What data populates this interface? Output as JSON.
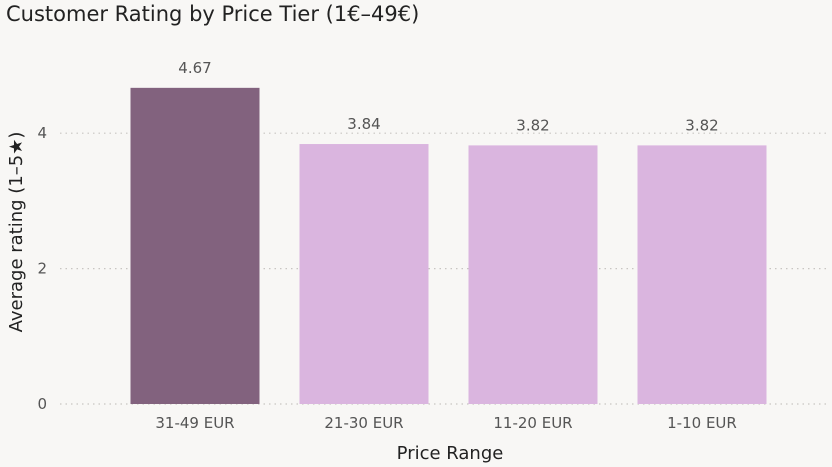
{
  "chart_data": {
    "type": "bar",
    "title": "Customer Rating by Price Tier (1€–49€)",
    "xlabel": "Price Range",
    "ylabel": "Average rating (1–5★)",
    "categories": [
      "31-49 EUR",
      "21-30 EUR",
      "11-20 EUR",
      "1-10 EUR"
    ],
    "values": [
      4.67,
      3.84,
      3.82,
      3.82
    ],
    "data_labels": [
      "4.67",
      "3.84",
      "3.82",
      "3.82"
    ],
    "yticks": [
      0,
      2,
      4
    ],
    "ytick_labels": [
      "0",
      "2",
      "4"
    ],
    "ylim": [
      0,
      5.1
    ],
    "grid": true,
    "colors": {
      "highlight": "#82627e",
      "default": "#dab5df"
    }
  }
}
